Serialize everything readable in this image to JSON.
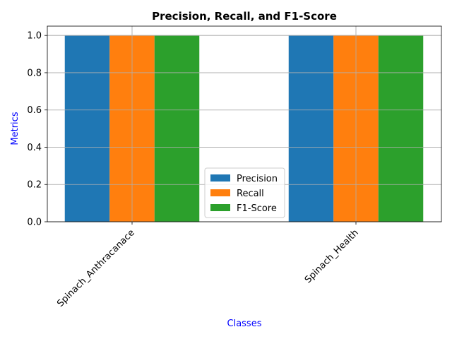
{
  "chart_data": {
    "type": "bar",
    "title": "Precision, Recall, and F1-Score",
    "xlabel": "Classes",
    "ylabel": "Metrics",
    "categories": [
      "Spinach_Anthracanace",
      "Spinach_Health"
    ],
    "series": [
      {
        "name": "Precision",
        "values": [
          1.0,
          1.0
        ],
        "color": "#1f77b4"
      },
      {
        "name": "Recall",
        "values": [
          1.0,
          1.0
        ],
        "color": "#ff7f0e"
      },
      {
        "name": "F1-Score",
        "values": [
          1.0,
          1.0
        ],
        "color": "#2ca02c"
      }
    ],
    "ylim": [
      0,
      1.05
    ],
    "yticks": [
      "0.0",
      "0.2",
      "0.4",
      "0.6",
      "0.8",
      "1.0"
    ],
    "grid": true,
    "legend_position": "lower center",
    "axis_label_color": "#0000ff"
  }
}
